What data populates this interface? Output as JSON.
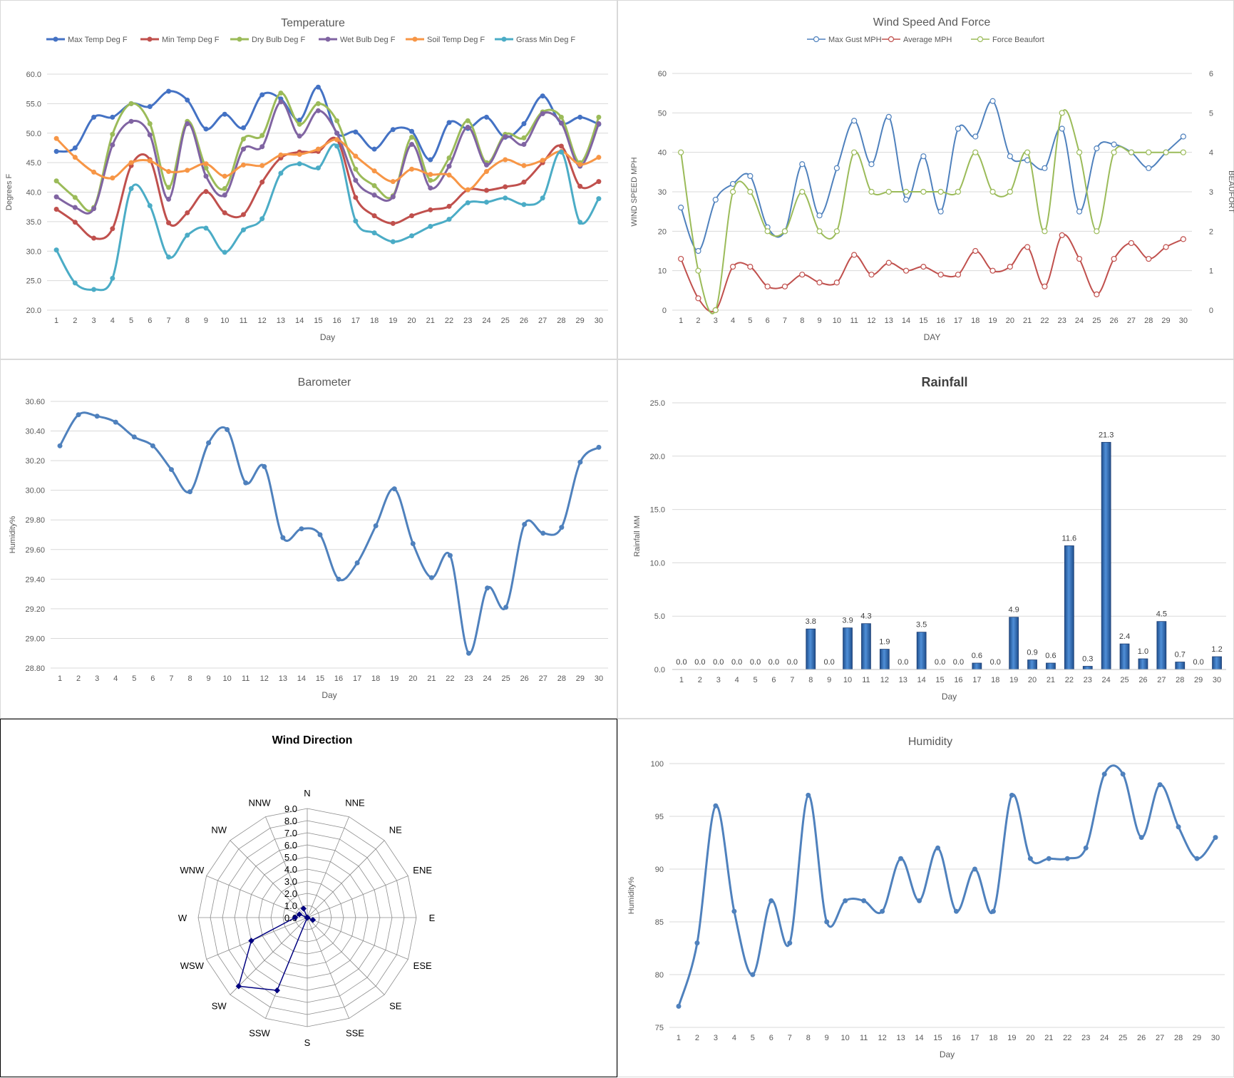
{
  "chart_data": [
    {
      "id": "temperature",
      "type": "line",
      "title": "Temperature",
      "xlabel": "Day",
      "ylabel": "Degrees F",
      "ylim": [
        20,
        60
      ],
      "ytick_step": 5,
      "ytick_decimals": 1,
      "legend": "top",
      "grid": true,
      "x": [
        1,
        2,
        3,
        4,
        5,
        6,
        7,
        8,
        9,
        10,
        11,
        12,
        13,
        14,
        15,
        16,
        17,
        18,
        19,
        20,
        21,
        22,
        23,
        24,
        25,
        26,
        27,
        28,
        29,
        30
      ],
      "series": [
        {
          "name": "Max Temp Deg F",
          "color": "#4472c4",
          "values": [
            46.9,
            47.5,
            52.7,
            52.7,
            55.0,
            54.5,
            57.1,
            55.6,
            50.7,
            53.2,
            50.9,
            56.5,
            55.8,
            52.2,
            57.8,
            50.0,
            50.2,
            47.3,
            50.6,
            50.3,
            45.5,
            51.8,
            50.8,
            52.7,
            49.3,
            51.6,
            56.3,
            51.7,
            52.7,
            51.5
          ]
        },
        {
          "name": "Min Temp Deg F",
          "color": "#c0504d",
          "values": [
            37.1,
            34.9,
            32.2,
            33.8,
            44.5,
            45.5,
            34.8,
            36.5,
            40.1,
            36.5,
            36.2,
            41.7,
            45.8,
            46.8,
            46.9,
            48.9,
            39.1,
            36.0,
            34.7,
            36.0,
            37.0,
            37.6,
            40.4,
            40.3,
            40.9,
            41.7,
            45.0,
            47.8,
            41.0,
            41.8
          ]
        },
        {
          "name": "Dry Bulb Deg F",
          "color": "#9bbb59",
          "values": [
            41.9,
            39.1,
            37.4,
            49.8,
            55.0,
            51.6,
            40.8,
            52.0,
            44.1,
            40.6,
            49.0,
            49.6,
            56.8,
            51.5,
            55.0,
            52.1,
            43.9,
            41.1,
            39.4,
            49.3,
            42.0,
            45.8,
            52.1,
            45.0,
            49.8,
            49.2,
            53.6,
            52.7,
            45.0,
            52.7
          ]
        },
        {
          "name": "Wet Bulb Deg F",
          "color": "#8064a2",
          "values": [
            39.2,
            37.4,
            37.2,
            48.0,
            52.0,
            49.7,
            38.8,
            51.6,
            42.7,
            39.5,
            47.3,
            47.7,
            55.3,
            49.5,
            53.8,
            50.0,
            42.0,
            39.5,
            39.2,
            48.1,
            40.7,
            44.4,
            51.0,
            44.6,
            49.4,
            48.1,
            53.3,
            51.7,
            44.4,
            51.6
          ]
        },
        {
          "name": "Soil Temp Deg F",
          "color": "#f79646",
          "values": [
            49.1,
            45.9,
            43.4,
            42.4,
            45.0,
            45.3,
            43.5,
            43.7,
            44.8,
            42.7,
            44.6,
            44.5,
            46.3,
            46.4,
            47.3,
            48.9,
            46.1,
            43.6,
            41.8,
            43.9,
            43.0,
            42.9,
            40.4,
            43.5,
            45.5,
            44.5,
            45.4,
            46.9,
            44.7,
            45.9
          ]
        },
        {
          "name": "Grass Min Deg F",
          "color": "#4bacc6",
          "values": [
            30.2,
            24.6,
            23.5,
            25.4,
            40.6,
            37.7,
            29.0,
            32.7,
            33.9,
            29.8,
            33.6,
            35.5,
            43.2,
            44.8,
            44.1,
            47.8,
            35.1,
            33.1,
            31.6,
            32.6,
            34.2,
            35.4,
            38.2,
            38.3,
            39.0,
            37.9,
            39.0,
            46.8,
            34.9,
            38.9
          ]
        }
      ]
    },
    {
      "id": "wind",
      "type": "line",
      "title": "Wind Speed And Force",
      "xlabel": "DAY",
      "ylabel": "WIND SPEED MPH",
      "y2label": "BEAUFORT",
      "ylim": [
        0,
        60
      ],
      "y2lim": [
        0,
        6
      ],
      "ytick_step": 10,
      "y2tick_step": 1,
      "legend": "top",
      "grid": true,
      "x": [
        1,
        2,
        3,
        4,
        5,
        6,
        7,
        8,
        9,
        10,
        11,
        12,
        13,
        14,
        15,
        16,
        17,
        18,
        19,
        20,
        21,
        22,
        23,
        24,
        25,
        26,
        27,
        28,
        29,
        30
      ],
      "series": [
        {
          "name": "Max Gust MPH",
          "color": "#4f81bd",
          "axis": "left",
          "values": [
            26,
            15,
            28,
            32,
            34,
            21,
            20,
            37,
            24,
            36,
            48,
            37,
            49,
            28,
            39,
            25,
            46,
            44,
            53,
            39,
            38,
            36,
            46,
            25,
            41,
            42,
            40,
            36,
            40,
            44
          ]
        },
        {
          "name": "Average MPH",
          "color": "#c0504d",
          "axis": "left",
          "values": [
            13,
            3,
            0,
            11,
            11,
            6,
            6,
            9,
            7,
            7,
            14,
            9,
            12,
            10,
            11,
            9,
            9,
            15,
            10,
            11,
            16,
            6,
            19,
            13,
            4,
            13,
            17,
            13,
            16,
            18
          ]
        },
        {
          "name": "Force Beaufort",
          "color": "#9bbb59",
          "axis": "right",
          "values": [
            4,
            1,
            0,
            3,
            3,
            2,
            2,
            3,
            2,
            2,
            4,
            3,
            3,
            3,
            3,
            3,
            3,
            4,
            3,
            3,
            4,
            2,
            5,
            4,
            2,
            4,
            4,
            4,
            4,
            4
          ]
        }
      ]
    },
    {
      "id": "barometer",
      "type": "line",
      "title": "Barometer",
      "xlabel": "Day",
      "ylabel": "Humidity%",
      "ylim": [
        28.8,
        30.6
      ],
      "ytick_step": 0.2,
      "ytick_decimals": 2,
      "grid": true,
      "x": [
        1,
        2,
        3,
        4,
        5,
        6,
        7,
        8,
        9,
        10,
        11,
        12,
        13,
        14,
        15,
        16,
        17,
        18,
        19,
        20,
        21,
        22,
        23,
        24,
        25,
        26,
        27,
        28,
        29,
        30
      ],
      "series": [
        {
          "name": "",
          "color": "#4f81bd",
          "values": [
            30.3,
            30.51,
            30.5,
            30.46,
            30.36,
            30.3,
            30.14,
            29.99,
            30.32,
            30.41,
            30.05,
            30.16,
            29.68,
            29.74,
            29.7,
            29.4,
            29.51,
            29.76,
            30.01,
            29.64,
            29.41,
            29.56,
            28.9,
            29.34,
            29.21,
            29.77,
            29.71,
            29.75,
            30.19,
            30.29
          ]
        }
      ]
    },
    {
      "id": "rainfall",
      "type": "bar",
      "title": "Rainfall",
      "xlabel": "Day",
      "ylabel": "Rainfall MM",
      "ylim": [
        0,
        25
      ],
      "ytick_step": 5,
      "ytick_decimals": 1,
      "grid": true,
      "categories": [
        "1",
        "2",
        "3",
        "4",
        "5",
        "6",
        "7",
        "8",
        "9",
        "10",
        "11",
        "12",
        "13",
        "14",
        "15",
        "16",
        "17",
        "18",
        "19",
        "20",
        "21",
        "22",
        "23",
        "24",
        "25",
        "26",
        "27",
        "28",
        "29",
        "30"
      ],
      "values": [
        0.0,
        0.0,
        0.0,
        0.0,
        0.0,
        0.0,
        0.0,
        3.8,
        0.0,
        3.9,
        4.3,
        1.9,
        0.0,
        3.5,
        0.0,
        0.0,
        0.6,
        0.0,
        4.9,
        0.9,
        0.6,
        11.6,
        0.3,
        21.3,
        2.4,
        1.0,
        4.5,
        0.7,
        0.0,
        1.2
      ],
      "data_labels": [
        "0.0",
        "0.0",
        "0.0",
        "0.0",
        "0.0",
        "0.0",
        "0.0",
        "3.8",
        "0.0",
        "3.9",
        "4.3",
        "1.9",
        "0.0",
        "3.5",
        "0.0",
        "0.0",
        "0.6",
        "0.0",
        "4.9",
        "0.9",
        "0.6",
        "11.6",
        "0.3",
        "21.3",
        "2.4",
        "1.0",
        "4.5",
        "0.7",
        "0.0",
        "1.2"
      ],
      "color": "#2e6bb8"
    },
    {
      "id": "wind_direction",
      "type": "radar",
      "title": "Wind Direction",
      "rlim": [
        0,
        9
      ],
      "rtick_step": 1,
      "categories": [
        "N",
        "NNE",
        "NE",
        "ENE",
        "E",
        "ESE",
        "SE",
        "SSE",
        "S",
        "SSW",
        "SW",
        "WSW",
        "W",
        "WNW",
        "NW",
        "NNW"
      ],
      "values": [
        0,
        0,
        0,
        0,
        0,
        0.5,
        0,
        0,
        0,
        6.5,
        8.0,
        5.0,
        1.0,
        0.7,
        0,
        0.8
      ],
      "color": "#000080"
    },
    {
      "id": "humidity",
      "type": "line",
      "title": "Humidity",
      "xlabel": "Day",
      "ylabel": "Humidity%",
      "ylim": [
        75,
        100
      ],
      "ytick_step": 5,
      "ytick_decimals": 0,
      "grid": true,
      "x": [
        1,
        2,
        3,
        4,
        5,
        6,
        7,
        8,
        9,
        10,
        11,
        12,
        13,
        14,
        15,
        16,
        17,
        18,
        19,
        20,
        21,
        22,
        23,
        24,
        25,
        26,
        27,
        28,
        29,
        30
      ],
      "series": [
        {
          "name": "",
          "color": "#4f81bd",
          "values": [
            77,
            83,
            96,
            86,
            80,
            87,
            83,
            97,
            85,
            87,
            87,
            86,
            91,
            87,
            92,
            86,
            90,
            86,
            97,
            91,
            91,
            91,
            92,
            99,
            99,
            93,
            98,
            94,
            91,
            93
          ]
        }
      ]
    }
  ]
}
